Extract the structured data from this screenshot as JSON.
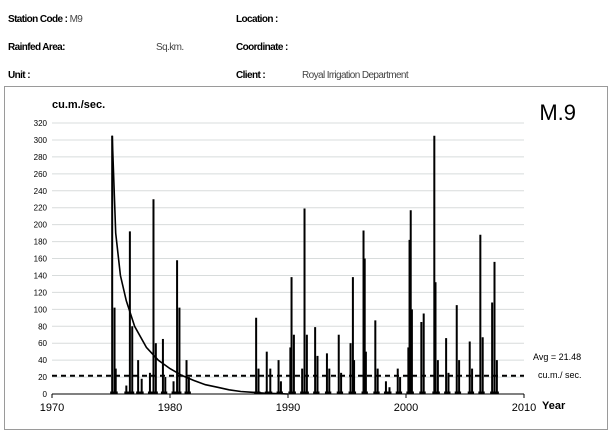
{
  "header": {
    "station_code_label": "Station Code :",
    "station_code_value": "M9",
    "location_label": "Location :",
    "rainfed_area_label": "Rainfed Area:",
    "rainfed_area_value": "Sq.km.",
    "coordinate_label": "Coordinate :",
    "unit_label": "Unit :",
    "client_label": "Client :",
    "client_value": "Royal Irrigation Department"
  },
  "chart_data": {
    "type": "bar",
    "station_label": "M.9",
    "ylabel": "cu.m./sec.",
    "xlabel": "Year",
    "ylim": [
      0,
      320
    ],
    "yticks": [
      0,
      20,
      40,
      60,
      80,
      100,
      120,
      140,
      160,
      180,
      200,
      220,
      240,
      260,
      280,
      300,
      320
    ],
    "xlim": [
      1970,
      2010
    ],
    "xticks": [
      1970,
      1980,
      1990,
      2000,
      2010
    ],
    "grid": true,
    "average": {
      "value": 21.48,
      "label_line1": "Avg = 21.48",
      "label_line2": "cu.m./ sec."
    },
    "series": [
      {
        "style": "bars",
        "points": [
          [
            1975.1,
            305
          ],
          [
            1975.3,
            102
          ],
          [
            1975.4,
            30
          ],
          [
            1976.3,
            10
          ],
          [
            1976.6,
            192
          ],
          [
            1976.8,
            80
          ],
          [
            1977.3,
            40
          ],
          [
            1977.6,
            18
          ],
          [
            1978.3,
            25
          ],
          [
            1978.6,
            230
          ],
          [
            1978.8,
            60
          ],
          [
            1979.4,
            65
          ],
          [
            1979.6,
            20
          ],
          [
            1980.3,
            15
          ],
          [
            1980.6,
            158
          ],
          [
            1980.8,
            102
          ],
          [
            1981.4,
            40
          ],
          [
            1981.6,
            20
          ],
          [
            1987.3,
            90
          ],
          [
            1987.5,
            30
          ],
          [
            1988.2,
            50
          ],
          [
            1988.5,
            30
          ],
          [
            1989.2,
            40
          ],
          [
            1989.4,
            15
          ],
          [
            1990.2,
            55
          ],
          [
            1990.3,
            138
          ],
          [
            1990.5,
            70
          ],
          [
            1991.2,
            30
          ],
          [
            1991.4,
            219
          ],
          [
            1991.6,
            70
          ],
          [
            1992.3,
            79
          ],
          [
            1992.5,
            45
          ],
          [
            1993.3,
            48
          ],
          [
            1993.5,
            30
          ],
          [
            1994.3,
            70
          ],
          [
            1994.5,
            25
          ],
          [
            1995.3,
            60
          ],
          [
            1995.5,
            138
          ],
          [
            1995.6,
            40
          ],
          [
            1996.4,
            193
          ],
          [
            1996.5,
            160
          ],
          [
            1996.6,
            50
          ],
          [
            1997.4,
            87
          ],
          [
            1997.6,
            30
          ],
          [
            1998.3,
            15
          ],
          [
            1998.6,
            8
          ],
          [
            1999.3,
            30
          ],
          [
            1999.5,
            20
          ],
          [
            2000.2,
            55
          ],
          [
            2000.3,
            182
          ],
          [
            2000.4,
            217
          ],
          [
            2000.5,
            100
          ],
          [
            2001.3,
            85
          ],
          [
            2001.5,
            95
          ],
          [
            2002.4,
            305
          ],
          [
            2002.5,
            132
          ],
          [
            2002.7,
            40
          ],
          [
            2003.4,
            66
          ],
          [
            2003.6,
            25
          ],
          [
            2004.3,
            105
          ],
          [
            2004.5,
            40
          ],
          [
            2005.4,
            62
          ],
          [
            2005.6,
            30
          ],
          [
            2006.3,
            188
          ],
          [
            2006.5,
            67
          ],
          [
            2007.3,
            108
          ],
          [
            2007.5,
            156
          ],
          [
            2007.7,
            40
          ]
        ]
      },
      {
        "style": "curve",
        "points": [
          [
            1975.1,
            305
          ],
          [
            1975.4,
            190
          ],
          [
            1975.8,
            140
          ],
          [
            1976.3,
            110
          ],
          [
            1977.0,
            80
          ],
          [
            1978.0,
            55
          ],
          [
            1979.0,
            40
          ],
          [
            1980.0,
            30
          ],
          [
            1981.0,
            22
          ],
          [
            1982.0,
            16
          ],
          [
            1983.0,
            11
          ],
          [
            1984.0,
            8
          ],
          [
            1985.0,
            5
          ],
          [
            1986.0,
            3
          ],
          [
            1987.0,
            2
          ],
          [
            1988.0,
            1
          ],
          [
            1989.0,
            0.5
          ],
          [
            1990.0,
            0
          ]
        ]
      }
    ]
  }
}
